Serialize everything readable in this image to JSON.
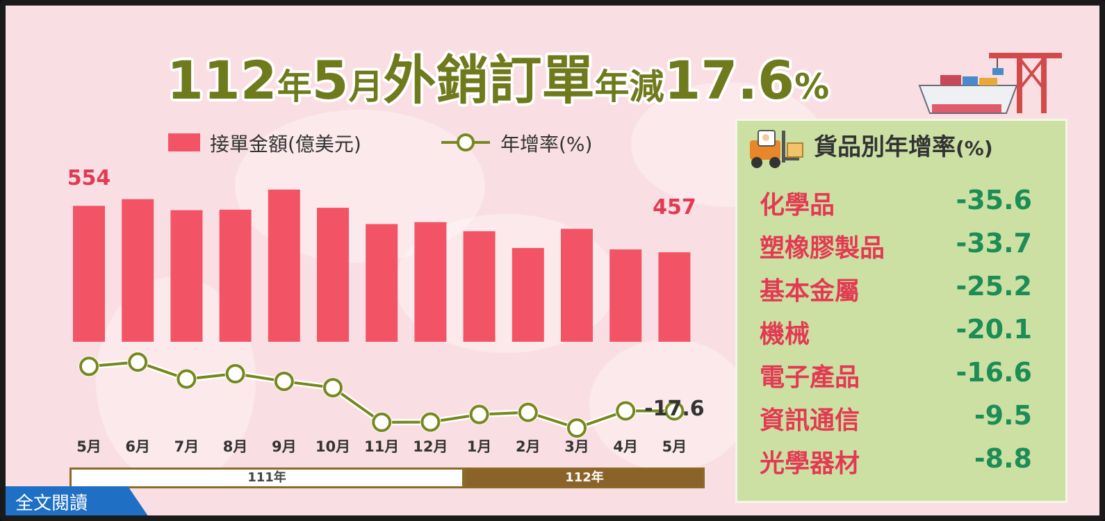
{
  "title": {
    "prefix": "112",
    "y1": "年",
    "month": "5",
    "m1": "月",
    "main": "外銷訂單",
    "small": "年減",
    "value": "17.6",
    "pct": "%"
  },
  "legend": {
    "bar": "接單金額(億美元)",
    "line": "年增率(%)"
  },
  "chart_data": {
    "type": "bar+line",
    "categories": [
      "5月",
      "6月",
      "7月",
      "8月",
      "9月",
      "10月",
      "11月",
      "12月",
      "1月",
      "2月",
      "3月",
      "4月",
      "5月"
    ],
    "year_groups": [
      {
        "label": "111年",
        "span": 8
      },
      {
        "label": "112年",
        "span": 5
      }
    ],
    "series": [
      {
        "name": "接單金額(億美元)",
        "type": "bar",
        "values": [
          554,
          568,
          545,
          546,
          588,
          550,
          516,
          520,
          501,
          466,
          506,
          463,
          457
        ]
      },
      {
        "name": "年增率(%)",
        "type": "line",
        "values": [
          3.5,
          5.5,
          -2.5,
          0.0,
          -3.6,
          -6.6,
          -23.0,
          -22.9,
          -19.3,
          -18.3,
          -25.7,
          -17.6,
          -17.6
        ]
      }
    ],
    "data_labels": {
      "first": "554",
      "last_bar": "457",
      "last_line": "-17.6"
    },
    "grid": false,
    "legend_position": "top"
  },
  "panel": {
    "title": "貨品別年增率",
    "title_pct": "(%)",
    "items": [
      {
        "name": "化學品",
        "value": "-35.6"
      },
      {
        "name": "塑橡膠製品",
        "value": "-33.7"
      },
      {
        "name": "基本金屬",
        "value": "-25.2"
      },
      {
        "name": "機械",
        "value": "-20.1"
      },
      {
        "name": "電子產品",
        "value": "-16.6"
      },
      {
        "name": "資訊通信",
        "value": "-9.5"
      },
      {
        "name": "光學器材",
        "value": "-8.8"
      }
    ]
  },
  "button": {
    "label": "全文閱讀"
  },
  "colors": {
    "bar": "#f25465",
    "line": "#76881e",
    "title": "#6f7a1d",
    "panel_value": "#1d8c55",
    "panel_name": "#e23a52"
  }
}
